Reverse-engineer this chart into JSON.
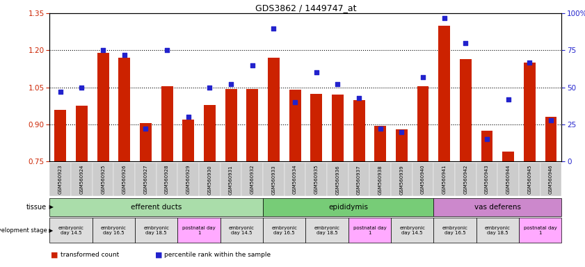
{
  "title": "GDS3862 / 1449747_at",
  "samples": [
    "GSM560923",
    "GSM560924",
    "GSM560925",
    "GSM560926",
    "GSM560927",
    "GSM560928",
    "GSM560929",
    "GSM560930",
    "GSM560931",
    "GSM560932",
    "GSM560933",
    "GSM560934",
    "GSM560935",
    "GSM560936",
    "GSM560937",
    "GSM560938",
    "GSM560939",
    "GSM560940",
    "GSM560941",
    "GSM560942",
    "GSM560943",
    "GSM560944",
    "GSM560945",
    "GSM560946"
  ],
  "transformed_count": [
    0.96,
    0.975,
    1.19,
    1.17,
    0.905,
    1.055,
    0.92,
    0.98,
    1.045,
    1.045,
    1.17,
    1.04,
    1.025,
    1.02,
    1.0,
    0.895,
    0.88,
    1.055,
    1.3,
    1.165,
    0.875,
    0.79,
    1.15,
    0.93
  ],
  "percentile_rank": [
    47,
    50,
    75,
    72,
    22,
    75,
    30,
    50,
    52,
    65,
    90,
    40,
    60,
    52,
    43,
    22,
    20,
    57,
    97,
    80,
    15,
    42,
    67,
    28
  ],
  "ylim_left": [
    0.75,
    1.35
  ],
  "ylim_right": [
    0,
    100
  ],
  "yticks_left": [
    0.75,
    0.9,
    1.05,
    1.2,
    1.35
  ],
  "yticks_right": [
    0,
    25,
    50,
    75,
    100
  ],
  "bar_color": "#cc2200",
  "dot_color": "#2222cc",
  "bar_bottom": 0.75,
  "tissue_groups": [
    {
      "label": "efferent ducts",
      "start": 0,
      "end": 10,
      "color": "#aaddaa"
    },
    {
      "label": "epididymis",
      "start": 10,
      "end": 18,
      "color": "#77cc77"
    },
    {
      "label": "vas deferens",
      "start": 18,
      "end": 24,
      "color": "#cc88cc"
    }
  ],
  "dev_stage_groups": [
    {
      "label": "embryonic\nday 14.5",
      "start": 0,
      "end": 2,
      "color": "#dddddd"
    },
    {
      "label": "embryonic\nday 16.5",
      "start": 2,
      "end": 4,
      "color": "#dddddd"
    },
    {
      "label": "embryonic\nday 18.5",
      "start": 4,
      "end": 6,
      "color": "#dddddd"
    },
    {
      "label": "postnatal day\n1",
      "start": 6,
      "end": 8,
      "color": "#ffaaff"
    },
    {
      "label": "embryonic\nday 14.5",
      "start": 8,
      "end": 10,
      "color": "#dddddd"
    },
    {
      "label": "embryonic\nday 16.5",
      "start": 10,
      "end": 12,
      "color": "#dddddd"
    },
    {
      "label": "embryonic\nday 18.5",
      "start": 12,
      "end": 14,
      "color": "#dddddd"
    },
    {
      "label": "postnatal day\n1",
      "start": 14,
      "end": 16,
      "color": "#ffaaff"
    },
    {
      "label": "embryonic\nday 14.5",
      "start": 16,
      "end": 18,
      "color": "#dddddd"
    },
    {
      "label": "embryonic\nday 16.5",
      "start": 18,
      "end": 20,
      "color": "#dddddd"
    },
    {
      "label": "embryonic\nday 18.5",
      "start": 20,
      "end": 22,
      "color": "#dddddd"
    },
    {
      "label": "postnatal day\n1",
      "start": 22,
      "end": 24,
      "color": "#ffaaff"
    }
  ],
  "grid_lines": [
    0.9,
    1.05,
    1.2
  ],
  "legend_bar_label": "transformed count",
  "legend_dot_label": "percentile rank within the sample",
  "xlabel_color": "#333333",
  "tick_bg_color": "#cccccc",
  "left_label_color": "#333333"
}
